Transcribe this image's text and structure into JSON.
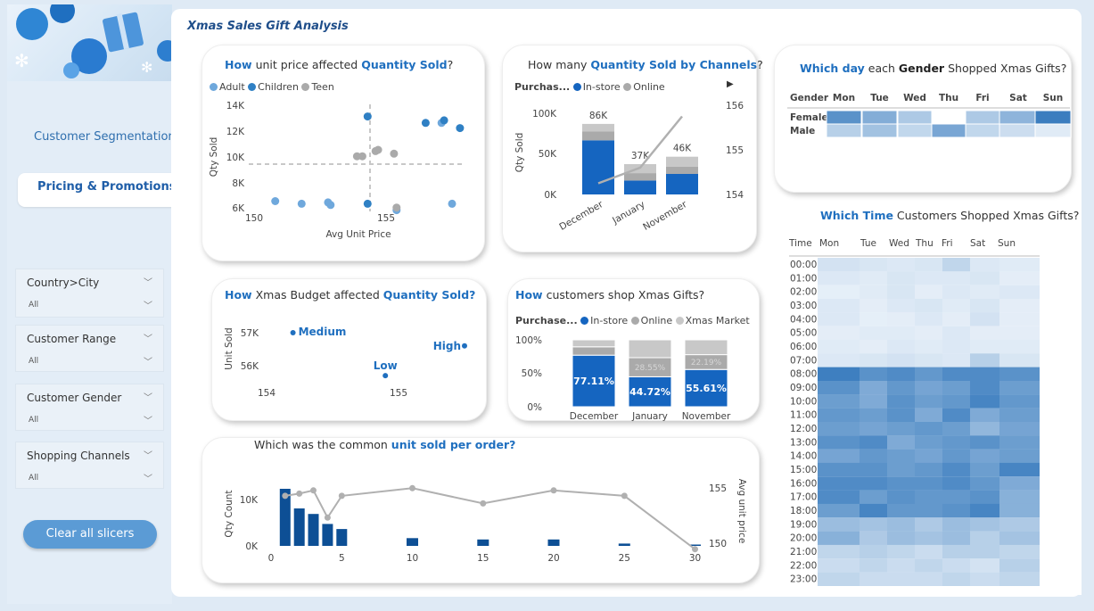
{
  "sidebar": {
    "nav": [
      "Customer Segmentation",
      "Pricing & Promotions"
    ],
    "slicers": [
      {
        "title": "Country>City",
        "value": "All"
      },
      {
        "title": "Customer Range",
        "value": "All"
      },
      {
        "title": "Customer Gender",
        "value": "All"
      },
      {
        "title": "Shopping Channels",
        "value": "All"
      }
    ],
    "clear_label": "Clear all slicers"
  },
  "header": {
    "title": "Xmas Sales Gift Analysis"
  },
  "colors": {
    "accent": "#1f6fbf",
    "instore": "#1565c0",
    "online": "#aaaaaa",
    "xmas_market": "#c8c8c8",
    "adult": "#6fa8dc",
    "children": "#2f80c4",
    "teen": "#aaaaaa"
  },
  "scatter": {
    "title_pre": "How",
    "title_mid": " unit price affected ",
    "title_bold": "Quantity Sold",
    "title_post": "?",
    "legend": [
      "Adult",
      "Children",
      "Teen"
    ],
    "xlabel": "Avg Unit Price",
    "ylabel": "Qty Sold",
    "yticks": [
      "14K",
      "12K",
      "10K",
      "8K",
      "6K"
    ],
    "xticks": [
      "150",
      "155"
    ]
  },
  "channels": {
    "title_pre": "How many ",
    "title_bold": "Quantity Sold by Channels",
    "title_post": "?",
    "legend_title": "Purchas...",
    "legend": [
      "In-store",
      "Online"
    ],
    "yticks": [
      "100K",
      "50K",
      "0K"
    ],
    "y2ticks": [
      "156",
      "155",
      "154"
    ],
    "ylabel": "Qty Sold"
  },
  "gender": {
    "title_pre": "Which day",
    "title_mid": " each ",
    "title_bold": "Gender",
    "title_post": " Shopped Xmas Gifts?",
    "header": [
      "Gender",
      "Mon",
      "Tue",
      "Wed",
      "Thu",
      "Fri",
      "Sat",
      "Sun"
    ],
    "rows": [
      {
        "label": "Female",
        "shades": [
          0.75,
          0.55,
          0.35,
          0.0,
          0.35,
          0.5,
          0.9
        ]
      },
      {
        "label": "Male",
        "shades": [
          0.3,
          0.4,
          0.25,
          0.6,
          0.25,
          0.2,
          0.1
        ]
      }
    ]
  },
  "budget": {
    "title_pre": "How",
    "title_mid": " Xmas Budget affected ",
    "title_bold": "Quantity Sold?",
    "ylabel": "Unit Sold",
    "yticks": [
      "57K",
      "56K"
    ],
    "xticks": [
      "154",
      "155"
    ],
    "points": [
      "Medium",
      "Low",
      "High"
    ]
  },
  "shop": {
    "title_pre": "How",
    "title_post": " customers shop Xmas Gifts?",
    "legend_title": "Purchase...",
    "legend": [
      "In-store",
      "Online",
      "Xmas Market"
    ],
    "yticks": [
      "100%",
      "50%",
      "0%"
    ],
    "online_labels": [
      "",
      "28.55%",
      "22.19%"
    ]
  },
  "units": {
    "title_pre": "Which was the common ",
    "title_bold": "unit sold per order?",
    "ylabel": "Qty Count",
    "y2label": "Avg unit price",
    "yticks": [
      "10K",
      "0K"
    ],
    "y2ticks": [
      "155",
      "150"
    ],
    "xticks": [
      "0",
      "5",
      "10",
      "15",
      "20",
      "25",
      "30"
    ]
  },
  "time": {
    "title_bold": "Which Time",
    "title_post": " Customers Shopped Xmas Gifts?",
    "header": [
      "Time",
      "Mon",
      "Tue",
      "Wed",
      "Thu",
      "Fri",
      "Sat",
      "Sun"
    ],
    "hours": [
      "00:00",
      "01:00",
      "02:00",
      "03:00",
      "04:00",
      "05:00",
      "06:00",
      "07:00",
      "08:00",
      "09:00",
      "10:00",
      "11:00",
      "12:00",
      "13:00",
      "14:00",
      "15:00",
      "16:00",
      "17:00",
      "18:00",
      "19:00",
      "20:00",
      "21:00",
      "22:00",
      "23:00"
    ]
  },
  "chart_data": [
    {
      "type": "scatter",
      "title": "How unit price affected Quantity Sold?",
      "xlabel": "Avg Unit Price",
      "ylabel": "Qty Sold",
      "xlim": [
        149.5,
        157.5
      ],
      "ylim": [
        6000,
        14500
      ],
      "series": [
        {
          "name": "Adult",
          "points": [
            [
              150.8,
              6800
            ],
            [
              151.8,
              6600
            ],
            [
              152.8,
              6700
            ],
            [
              152.9,
              6500
            ],
            [
              155.4,
              6100
            ],
            [
              157.5,
              6600
            ],
            [
              157.1,
              12900
            ]
          ]
        },
        {
          "name": "Children",
          "points": [
            [
              154.3,
              13400
            ],
            [
              156.5,
              12900
            ],
            [
              157.2,
              13100
            ],
            [
              157.8,
              12500
            ],
            [
              154.3,
              6600
            ]
          ]
        },
        {
          "name": "Teen",
          "points": [
            [
              153.9,
              10300
            ],
            [
              154.1,
              10300
            ],
            [
              154.6,
              10700
            ],
            [
              154.7,
              10800
            ],
            [
              155.3,
              10500
            ],
            [
              155.4,
              6300
            ]
          ]
        }
      ]
    },
    {
      "type": "bar",
      "title": "How many Quantity Sold by Channels?",
      "categories": [
        "December",
        "January",
        "November"
      ],
      "series": [
        {
          "name": "In-store",
          "values": [
            66000,
            17000,
            25000
          ]
        },
        {
          "name": "Online",
          "values": [
            11000,
            9000,
            9000
          ]
        },
        {
          "name": "Xmas Market",
          "values": [
            9000,
            11000,
            12000
          ]
        }
      ],
      "totals": [
        "86K",
        "37K",
        "46K"
      ],
      "line_y2": [
        154.25,
        154.6,
        155.75
      ],
      "ylim": [
        0,
        110000
      ],
      "y2lim": [
        153.8,
        156.2
      ]
    },
    {
      "type": "heatmap",
      "title": "Which day each Gender Shopped Xmas Gifts?",
      "x": [
        "Mon",
        "Tue",
        "Wed",
        "Thu",
        "Fri",
        "Sat",
        "Sun"
      ],
      "y": [
        "Female",
        "Male"
      ]
    },
    {
      "type": "scatter",
      "title": "How Xmas Budget affected Quantity Sold?",
      "ylabel": "Unit Sold",
      "points": [
        {
          "label": "Medium",
          "x": 154.2,
          "y": 57000
        },
        {
          "label": "Low",
          "x": 154.9,
          "y": 55700
        },
        {
          "label": "High",
          "x": 155.5,
          "y": 56600
        }
      ],
      "xlim": [
        153.9,
        155.6
      ],
      "ylim": [
        55600,
        57200
      ]
    },
    {
      "type": "bar",
      "title": "How customers shop Xmas Gifts?",
      "categories": [
        "December",
        "January",
        "November"
      ],
      "series": [
        {
          "name": "In-store",
          "values": [
            77.11,
            44.72,
            55.61
          ]
        },
        {
          "name": "Online",
          "values": [
            12.5,
            28.55,
            22.19
          ]
        },
        {
          "name": "Xmas Market",
          "values": [
            10.39,
            26.73,
            22.2
          ]
        }
      ],
      "labels": [
        "77.11%",
        "44.72%",
        "55.61%"
      ],
      "ylim": [
        0,
        100
      ]
    },
    {
      "type": "bar",
      "title": "Which was the common unit sold per order?",
      "xlabel": "",
      "ylabel": "Qty Count",
      "y2label": "Avg unit price",
      "x": [
        1,
        2,
        3,
        4,
        5,
        10,
        15,
        20,
        25,
        30
      ],
      "values": [
        12500,
        8200,
        7000,
        4800,
        3700,
        1700,
        1400,
        1400,
        500,
        300
      ],
      "line_x": [
        1,
        2,
        3,
        4,
        5,
        10,
        15,
        20,
        25,
        30
      ],
      "line_values": [
        154.6,
        154.8,
        155.1,
        152.6,
        154.6,
        155.3,
        153.9,
        155.1,
        154.6,
        149.7
      ],
      "ylim": [
        0,
        14000
      ],
      "y2lim": [
        149.5,
        156
      ]
    },
    {
      "type": "heatmap",
      "title": "Which Time Customers Shopped Xmas Gifts?",
      "x": [
        "Mon",
        "Tue",
        "Wed",
        "Thu",
        "Fri",
        "Sat",
        "Sun"
      ],
      "y": [
        "00:00",
        "01:00",
        "02:00",
        "03:00",
        "04:00",
        "05:00",
        "06:00",
        "07:00",
        "08:00",
        "09:00",
        "10:00",
        "11:00",
        "12:00",
        "13:00",
        "14:00",
        "15:00",
        "16:00",
        "17:00",
        "18:00",
        "19:00",
        "20:00",
        "21:00",
        "22:00",
        "23:00"
      ],
      "values": [
        [
          0.15,
          0.12,
          0.1,
          0.12,
          0.25,
          0.1,
          0.08
        ],
        [
          0.1,
          0.08,
          0.12,
          0.1,
          0.1,
          0.12,
          0.06
        ],
        [
          0.05,
          0.08,
          0.12,
          0.06,
          0.1,
          0.08,
          0.1
        ],
        [
          0.1,
          0.06,
          0.1,
          0.12,
          0.08,
          0.12,
          0.06
        ],
        [
          0.1,
          0.05,
          0.06,
          0.1,
          0.06,
          0.15,
          0.06
        ],
        [
          0.06,
          0.08,
          0.08,
          0.06,
          0.1,
          0.06,
          0.06
        ],
        [
          0.08,
          0.06,
          0.1,
          0.08,
          0.1,
          0.08,
          0.08
        ],
        [
          0.1,
          0.12,
          0.15,
          0.12,
          0.1,
          0.3,
          0.12
        ],
        [
          0.95,
          0.8,
          0.85,
          0.75,
          0.85,
          0.85,
          0.8
        ],
        [
          0.8,
          0.6,
          0.75,
          0.65,
          0.7,
          0.85,
          0.7
        ],
        [
          0.7,
          0.6,
          0.8,
          0.7,
          0.75,
          0.9,
          0.75
        ],
        [
          0.75,
          0.7,
          0.8,
          0.6,
          0.85,
          0.6,
          0.7
        ],
        [
          0.7,
          0.65,
          0.7,
          0.75,
          0.7,
          0.5,
          0.65
        ],
        [
          0.8,
          0.85,
          0.6,
          0.7,
          0.75,
          0.8,
          0.7
        ],
        [
          0.65,
          0.75,
          0.7,
          0.65,
          0.75,
          0.65,
          0.7
        ],
        [
          0.8,
          0.8,
          0.7,
          0.75,
          0.85,
          0.7,
          0.9
        ],
        [
          0.85,
          0.85,
          0.8,
          0.8,
          0.85,
          0.75,
          0.6
        ],
        [
          0.85,
          0.7,
          0.8,
          0.75,
          0.75,
          0.8,
          0.55
        ],
        [
          0.7,
          0.9,
          0.75,
          0.75,
          0.8,
          0.9,
          0.55
        ],
        [
          0.45,
          0.4,
          0.45,
          0.35,
          0.45,
          0.4,
          0.35
        ],
        [
          0.55,
          0.35,
          0.45,
          0.4,
          0.45,
          0.3,
          0.4
        ],
        [
          0.25,
          0.3,
          0.25,
          0.2,
          0.3,
          0.3,
          0.25
        ],
        [
          0.2,
          0.25,
          0.2,
          0.25,
          0.2,
          0.15,
          0.3
        ],
        [
          0.25,
          0.2,
          0.2,
          0.2,
          0.25,
          0.2,
          0.25
        ]
      ]
    }
  ]
}
